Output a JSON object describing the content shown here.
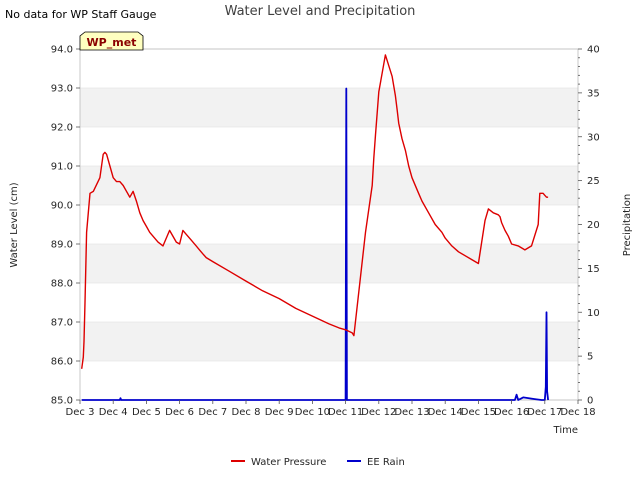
{
  "note": "No data for WP Staff Gauge",
  "badge": "WP_met",
  "chart_data": {
    "type": "line",
    "title": "Water Level and Precipitation",
    "xlabel": "Time",
    "ylabel_left": "Water Level (cm)",
    "ylabel_right": "Precipitation",
    "x_ticks": [
      "Dec 3",
      "Dec 4",
      "Dec 5",
      "Dec 6",
      "Dec 7",
      "Dec 8",
      "Dec 9",
      "Dec 10",
      "Dec 11",
      "Dec 12",
      "Dec 13",
      "Dec 14",
      "Dec 15",
      "Dec 16",
      "Dec 17",
      "Dec 18"
    ],
    "x_range": [
      3,
      18
    ],
    "y_left_range": [
      85.0,
      94.0
    ],
    "y_left_ticks": [
      "85.0",
      "86.0",
      "87.0",
      "88.0",
      "89.0",
      "90.0",
      "91.0",
      "92.0",
      "93.0",
      "94.0"
    ],
    "y_right_range": [
      0,
      40
    ],
    "y_right_ticks": [
      "0",
      "5",
      "10",
      "15",
      "20",
      "25",
      "30",
      "35",
      "40"
    ],
    "grid": "banded horizontal",
    "legend_placement": "bottom-center",
    "colors": {
      "water": "#dd0000",
      "rain": "#0000cc",
      "band": "#f2f2f2",
      "grid": "#dddddd"
    },
    "series": [
      {
        "name": "Water Pressure",
        "axis": "left",
        "x": [
          3.05,
          3.1,
          3.12,
          3.15,
          3.2,
          3.25,
          3.3,
          3.4,
          3.6,
          3.7,
          3.75,
          3.8,
          3.9,
          4.0,
          4.1,
          4.2,
          4.3,
          4.5,
          4.6,
          4.7,
          4.8,
          4.9,
          5.0,
          5.1,
          5.2,
          5.35,
          5.5,
          5.7,
          5.9,
          6.0,
          6.1,
          6.2,
          6.35,
          6.5,
          6.6,
          6.7,
          6.8,
          7.0,
          7.5,
          8.0,
          8.5,
          9.0,
          9.5,
          10.0,
          10.5,
          10.8,
          11.0,
          11.2,
          11.25,
          11.6,
          11.8,
          11.85,
          11.9,
          12.0,
          12.2,
          12.4,
          12.5,
          12.55,
          12.6,
          12.7,
          12.8,
          12.9,
          13.0,
          13.2,
          13.3,
          13.5,
          13.7,
          13.9,
          14.0,
          14.2,
          14.4,
          14.6,
          14.8,
          15.0,
          15.2,
          15.3,
          15.45,
          15.6,
          15.65,
          15.7,
          15.8,
          15.9,
          16.0,
          16.2,
          16.4,
          16.6,
          16.8,
          16.85,
          16.95,
          17.0,
          17.05,
          17.1
        ],
        "values": [
          85.8,
          86.1,
          86.5,
          87.5,
          89.3,
          89.8,
          90.3,
          90.35,
          90.7,
          91.3,
          91.35,
          91.3,
          91.0,
          90.7,
          90.6,
          90.6,
          90.5,
          90.2,
          90.35,
          90.1,
          89.8,
          89.6,
          89.45,
          89.3,
          89.2,
          89.05,
          88.95,
          89.35,
          89.05,
          89.0,
          89.35,
          89.25,
          89.1,
          88.95,
          88.85,
          88.75,
          88.65,
          88.55,
          88.3,
          88.05,
          87.8,
          87.6,
          87.35,
          87.15,
          86.95,
          86.85,
          86.8,
          86.72,
          86.65,
          89.3,
          90.5,
          91.2,
          91.8,
          92.9,
          93.85,
          93.3,
          92.8,
          92.45,
          92.1,
          91.7,
          91.4,
          91.0,
          90.7,
          90.3,
          90.1,
          89.8,
          89.5,
          89.3,
          89.15,
          88.95,
          88.8,
          88.7,
          88.6,
          88.5,
          89.6,
          89.9,
          89.8,
          89.75,
          89.7,
          89.55,
          89.35,
          89.2,
          89.0,
          88.95,
          88.85,
          88.95,
          89.5,
          90.3,
          90.3,
          90.25,
          90.2,
          90.2
        ]
      },
      {
        "name": "EE Rain",
        "axis": "right",
        "x": [
          3.05,
          4.2,
          4.22,
          4.24,
          11.0,
          11.02,
          11.04,
          16.1,
          16.15,
          16.2,
          16.35,
          16.7,
          16.9,
          17.0,
          17.03,
          17.05,
          17.07,
          17.1
        ],
        "values": [
          0,
          0,
          0.2,
          0,
          0,
          35.5,
          0,
          0,
          0.6,
          0,
          0.3,
          0.1,
          0,
          0,
          1.5,
          10,
          1,
          0
        ]
      }
    ]
  }
}
